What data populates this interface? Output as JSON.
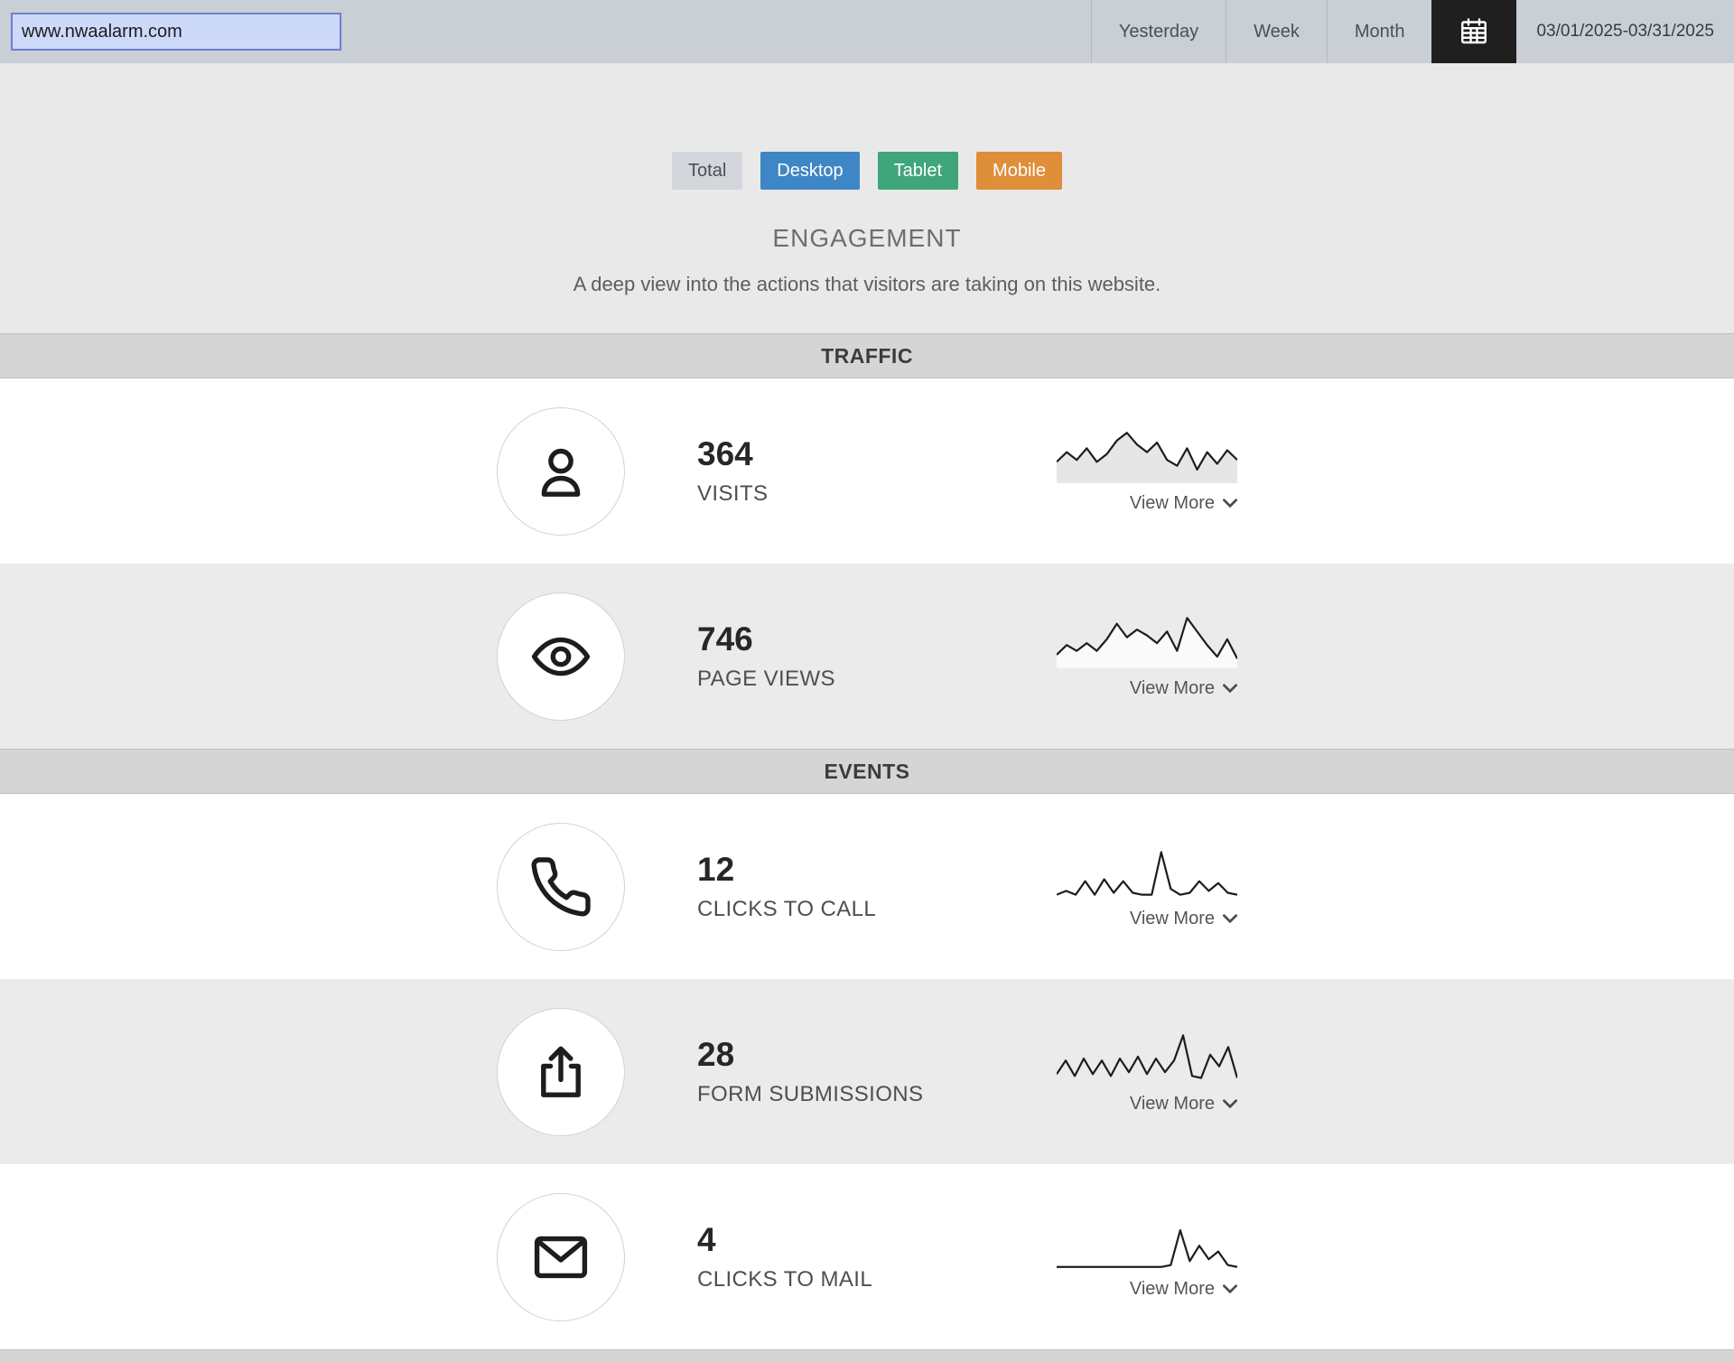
{
  "topbar": {
    "url_value": "www.nwaalarm.com",
    "range_buttons": [
      "Yesterday",
      "Week",
      "Month"
    ],
    "calendar_icon": "calendar-icon",
    "date_range": "03/01/2025-03/31/2025"
  },
  "filters": {
    "total": {
      "label": "Total",
      "bg": "#d3d7dc",
      "fg": "#4a4f55"
    },
    "desktop": {
      "label": "Desktop",
      "bg": "#3e86c6",
      "fg": "#ffffff"
    },
    "tablet": {
      "label": "Tablet",
      "bg": "#3fa67b",
      "fg": "#ffffff"
    },
    "mobile": {
      "label": "Mobile",
      "bg": "#df8e3a",
      "fg": "#ffffff"
    }
  },
  "hero": {
    "title": "ENGAGEMENT",
    "subtitle": "A deep view into the actions that visitors are taking on this website."
  },
  "sections": [
    {
      "header": "TRAFFIC",
      "rows": [
        {
          "icon": "user-icon",
          "value": "364",
          "label": "VISITS",
          "view_more": "View More",
          "filled": true,
          "spark": [
            11,
            16,
            12,
            18,
            11,
            15,
            22,
            26,
            20,
            16,
            21,
            12,
            9,
            18,
            7,
            16,
            10,
            17,
            12
          ]
        },
        {
          "icon": "eye-icon",
          "value": "746",
          "label": "PAGE VIEWS",
          "view_more": "View More",
          "filled": true,
          "spark": [
            7,
            12,
            9,
            13,
            9,
            15,
            23,
            16,
            20,
            17,
            13,
            19,
            9,
            26,
            19,
            12,
            6,
            15,
            5
          ]
        }
      ]
    },
    {
      "header": "EVENTS",
      "rows": [
        {
          "icon": "phone-icon",
          "value": "12",
          "label": "CLICKS TO CALL",
          "view_more": "View More",
          "filled": false,
          "spark": [
            2,
            4,
            2,
            9,
            2,
            10,
            3,
            9,
            3,
            2,
            2,
            24,
            5,
            2,
            3,
            9,
            4,
            8,
            3,
            2
          ]
        },
        {
          "icon": "upload-icon",
          "value": "28",
          "label": "FORM SUBMISSIONS",
          "view_more": "View More",
          "filled": false,
          "spark": [
            5,
            12,
            4,
            13,
            5,
            12,
            4,
            13,
            6,
            14,
            5,
            13,
            6,
            12,
            25,
            4,
            3,
            15,
            9,
            19,
            3
          ]
        },
        {
          "icon": "mail-icon",
          "value": "4",
          "label": "CLICKS TO MAIL",
          "view_more": "View More",
          "filled": false,
          "spark": [
            1,
            1,
            1,
            1,
            1,
            1,
            1,
            1,
            1,
            1,
            1,
            1,
            2,
            20,
            4,
            12,
            5,
            9,
            2,
            1
          ]
        }
      ]
    }
  ]
}
